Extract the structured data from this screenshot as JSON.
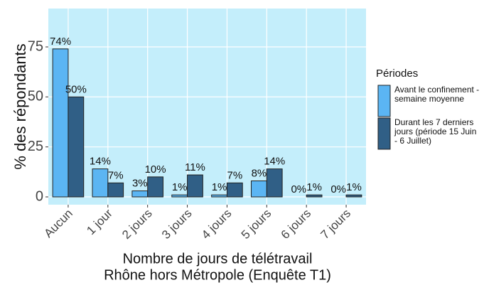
{
  "chart_data": {
    "type": "bar",
    "xlabel": [
      "Nombre de jours de télétravail",
      "Rhône hors Métropole (Enquête T1)"
    ],
    "ylabel": "% des répondants",
    "legend_title": "Périodes",
    "legend": "right",
    "grid": true,
    "categories": [
      "Aucun",
      "1 jour",
      "2 jours",
      "3 jours",
      "4 jours",
      "5 jours",
      "6 jours",
      "7 jours"
    ],
    "series": [
      {
        "name": "Avant le confinement - semaine moyenne",
        "color": "#5bb5f3",
        "values": [
          74,
          14,
          3,
          1,
          1,
          8,
          0,
          0
        ],
        "value_labels": [
          "74%",
          "14%",
          "3%",
          "1%",
          "1%",
          "8%",
          "0%",
          "0%"
        ]
      },
      {
        "name": "Durant les 7 derniers jours (période 15 Juin - 6 Juillet)",
        "color": "#305f86",
        "values": [
          50,
          7,
          10,
          11,
          7,
          14,
          1,
          1
        ],
        "value_labels": [
          "50%",
          "7%",
          "10%",
          "11%",
          "7%",
          "14%",
          "1%",
          "1%"
        ]
      }
    ],
    "ylim": [
      -3.9,
      94.2
    ],
    "yticks": [
      0,
      25,
      50,
      75
    ]
  }
}
